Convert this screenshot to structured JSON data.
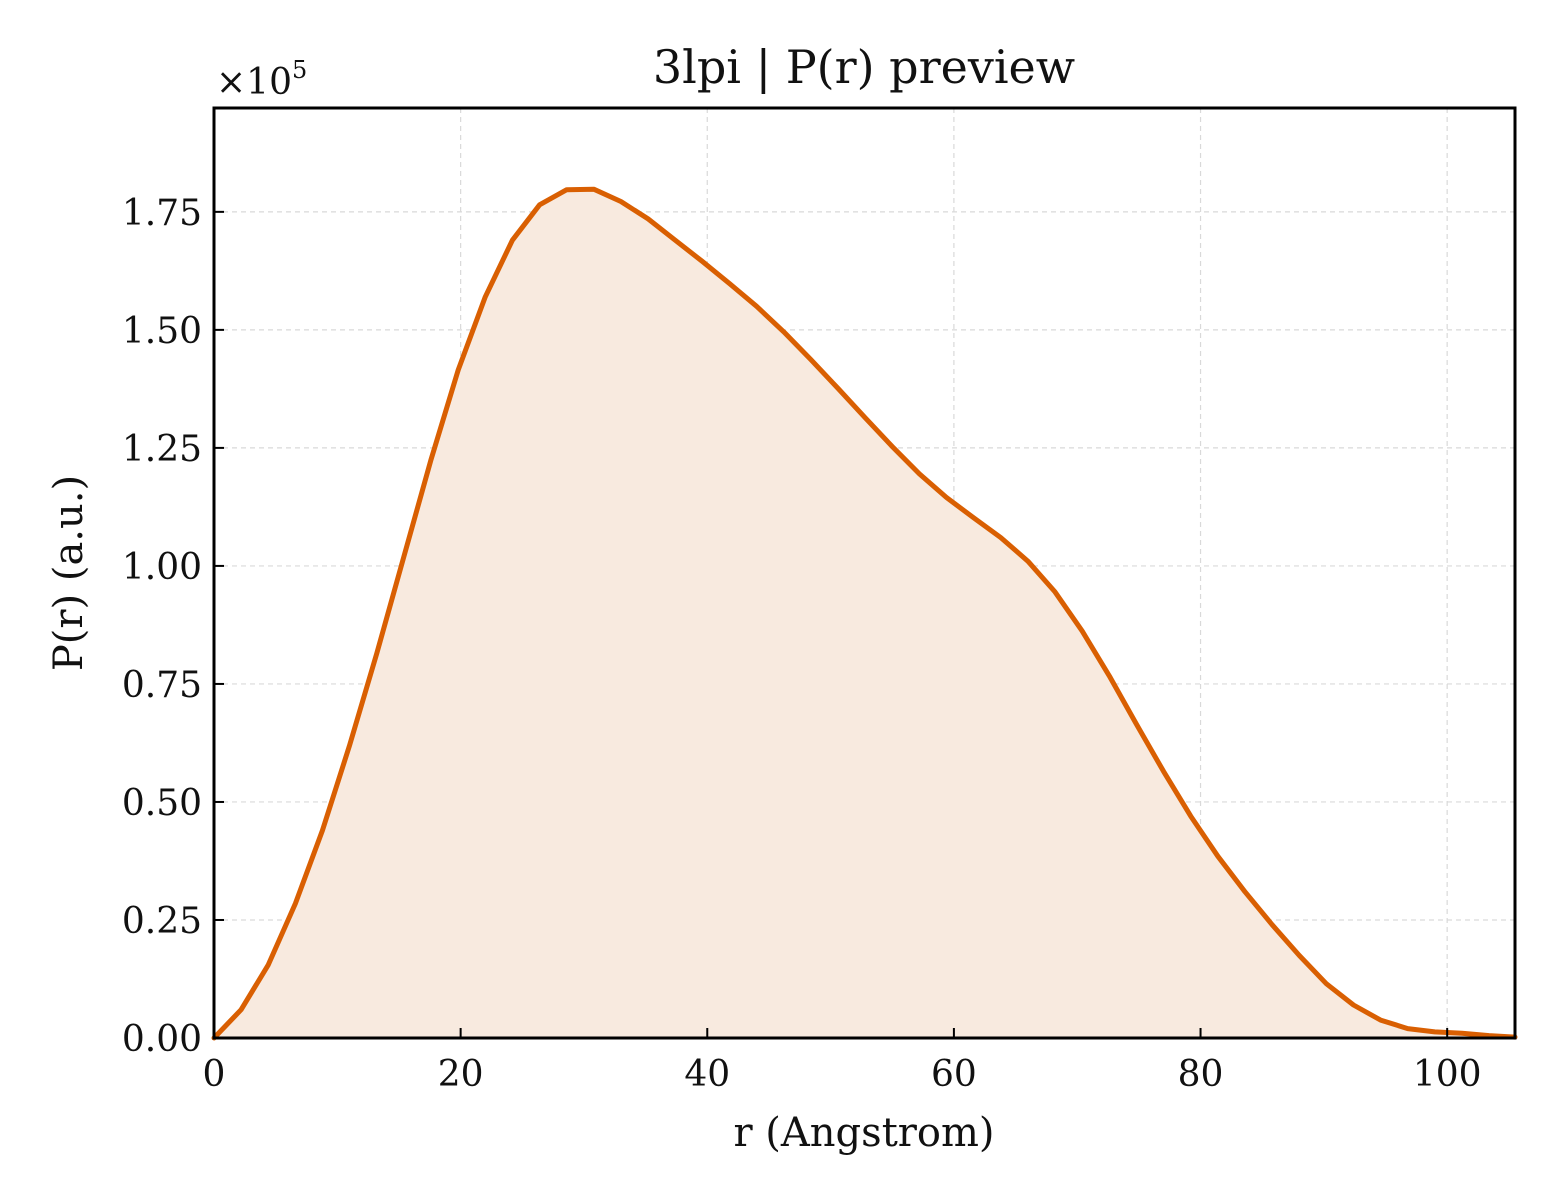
{
  "chart_data": {
    "type": "area",
    "title": "3lpi | P(r) preview",
    "xlabel": "r (Angstrom)",
    "ylabel": "P(r) (a.u.)",
    "y_scale_prefix": "×10",
    "y_scale_exponent": "5",
    "xlim": [
      0,
      105.5
    ],
    "ylim": [
      0,
      1.97
    ],
    "xticks": [
      0,
      20,
      40,
      60,
      80,
      100
    ],
    "xtick_labels": [
      "0",
      "20",
      "40",
      "60",
      "80",
      "100"
    ],
    "yticks": [
      0,
      0.25,
      0.5,
      0.75,
      1.0,
      1.25,
      1.5,
      1.75
    ],
    "ytick_labels": [
      "0.00",
      "0.25",
      "0.50",
      "0.75",
      "1.00",
      "1.25",
      "1.50",
      "1.75"
    ],
    "grid": true,
    "line_color": "#D95F02",
    "fill_color": "#F8EADF",
    "series": [
      {
        "x": [
          0,
          2.2,
          4.4,
          6.6,
          8.8,
          11,
          13.2,
          15.4,
          17.6,
          19.8,
          22,
          24.2,
          26.4,
          28.6,
          30.8,
          33,
          35.2,
          37.4,
          39.6,
          41.8,
          44,
          46.2,
          48.4,
          50.6,
          52.8,
          55,
          57.2,
          59.4,
          61.6,
          63.8,
          66,
          68.2,
          70.4,
          72.6,
          74.8,
          77,
          79.2,
          81.4,
          83.6,
          85.8,
          88,
          90.2,
          92.4,
          94.6,
          96.8,
          99,
          101.2,
          103.4,
          105.5
        ],
        "y": [
          0,
          0.06,
          0.155,
          0.285,
          0.44,
          0.62,
          0.815,
          1.02,
          1.225,
          1.415,
          1.57,
          1.69,
          1.765,
          1.797,
          1.798,
          1.772,
          1.735,
          1.69,
          1.645,
          1.598,
          1.55,
          1.496,
          1.437,
          1.376,
          1.314,
          1.253,
          1.195,
          1.145,
          1.102,
          1.06,
          1.01,
          0.945,
          0.862,
          0.767,
          0.665,
          0.565,
          0.47,
          0.385,
          0.31,
          0.24,
          0.175,
          0.115,
          0.07,
          0.038,
          0.02,
          0.013,
          0.01,
          0.005,
          0.002
        ]
      }
    ]
  }
}
